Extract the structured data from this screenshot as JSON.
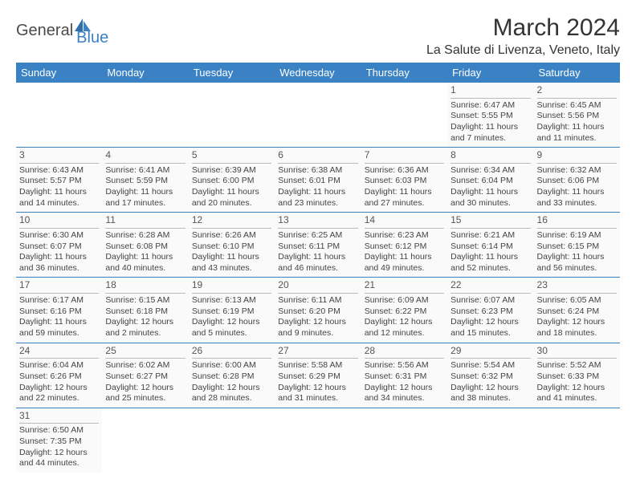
{
  "header": {
    "logo_dark": "General",
    "logo_blue": "Blue",
    "month_title": "March 2024",
    "location": "La Salute di Livenza, Veneto, Italy"
  },
  "colors": {
    "header_bg": "#3b82c4",
    "header_text": "#ffffff",
    "border": "#3b82c4",
    "cell_bg": "#fafafa",
    "logo_blue": "#3b7fc4",
    "logo_dark": "#4a4a4a"
  },
  "weekdays": [
    "Sunday",
    "Monday",
    "Tuesday",
    "Wednesday",
    "Thursday",
    "Friday",
    "Saturday"
  ],
  "weeks": [
    [
      null,
      null,
      null,
      null,
      null,
      {
        "day": "1",
        "sunrise": "Sunrise: 6:47 AM",
        "sunset": "Sunset: 5:55 PM",
        "daylight1": "Daylight: 11 hours",
        "daylight2": "and 7 minutes."
      },
      {
        "day": "2",
        "sunrise": "Sunrise: 6:45 AM",
        "sunset": "Sunset: 5:56 PM",
        "daylight1": "Daylight: 11 hours",
        "daylight2": "and 11 minutes."
      }
    ],
    [
      {
        "day": "3",
        "sunrise": "Sunrise: 6:43 AM",
        "sunset": "Sunset: 5:57 PM",
        "daylight1": "Daylight: 11 hours",
        "daylight2": "and 14 minutes."
      },
      {
        "day": "4",
        "sunrise": "Sunrise: 6:41 AM",
        "sunset": "Sunset: 5:59 PM",
        "daylight1": "Daylight: 11 hours",
        "daylight2": "and 17 minutes."
      },
      {
        "day": "5",
        "sunrise": "Sunrise: 6:39 AM",
        "sunset": "Sunset: 6:00 PM",
        "daylight1": "Daylight: 11 hours",
        "daylight2": "and 20 minutes."
      },
      {
        "day": "6",
        "sunrise": "Sunrise: 6:38 AM",
        "sunset": "Sunset: 6:01 PM",
        "daylight1": "Daylight: 11 hours",
        "daylight2": "and 23 minutes."
      },
      {
        "day": "7",
        "sunrise": "Sunrise: 6:36 AM",
        "sunset": "Sunset: 6:03 PM",
        "daylight1": "Daylight: 11 hours",
        "daylight2": "and 27 minutes."
      },
      {
        "day": "8",
        "sunrise": "Sunrise: 6:34 AM",
        "sunset": "Sunset: 6:04 PM",
        "daylight1": "Daylight: 11 hours",
        "daylight2": "and 30 minutes."
      },
      {
        "day": "9",
        "sunrise": "Sunrise: 6:32 AM",
        "sunset": "Sunset: 6:06 PM",
        "daylight1": "Daylight: 11 hours",
        "daylight2": "and 33 minutes."
      }
    ],
    [
      {
        "day": "10",
        "sunrise": "Sunrise: 6:30 AM",
        "sunset": "Sunset: 6:07 PM",
        "daylight1": "Daylight: 11 hours",
        "daylight2": "and 36 minutes."
      },
      {
        "day": "11",
        "sunrise": "Sunrise: 6:28 AM",
        "sunset": "Sunset: 6:08 PM",
        "daylight1": "Daylight: 11 hours",
        "daylight2": "and 40 minutes."
      },
      {
        "day": "12",
        "sunrise": "Sunrise: 6:26 AM",
        "sunset": "Sunset: 6:10 PM",
        "daylight1": "Daylight: 11 hours",
        "daylight2": "and 43 minutes."
      },
      {
        "day": "13",
        "sunrise": "Sunrise: 6:25 AM",
        "sunset": "Sunset: 6:11 PM",
        "daylight1": "Daylight: 11 hours",
        "daylight2": "and 46 minutes."
      },
      {
        "day": "14",
        "sunrise": "Sunrise: 6:23 AM",
        "sunset": "Sunset: 6:12 PM",
        "daylight1": "Daylight: 11 hours",
        "daylight2": "and 49 minutes."
      },
      {
        "day": "15",
        "sunrise": "Sunrise: 6:21 AM",
        "sunset": "Sunset: 6:14 PM",
        "daylight1": "Daylight: 11 hours",
        "daylight2": "and 52 minutes."
      },
      {
        "day": "16",
        "sunrise": "Sunrise: 6:19 AM",
        "sunset": "Sunset: 6:15 PM",
        "daylight1": "Daylight: 11 hours",
        "daylight2": "and 56 minutes."
      }
    ],
    [
      {
        "day": "17",
        "sunrise": "Sunrise: 6:17 AM",
        "sunset": "Sunset: 6:16 PM",
        "daylight1": "Daylight: 11 hours",
        "daylight2": "and 59 minutes."
      },
      {
        "day": "18",
        "sunrise": "Sunrise: 6:15 AM",
        "sunset": "Sunset: 6:18 PM",
        "daylight1": "Daylight: 12 hours",
        "daylight2": "and 2 minutes."
      },
      {
        "day": "19",
        "sunrise": "Sunrise: 6:13 AM",
        "sunset": "Sunset: 6:19 PM",
        "daylight1": "Daylight: 12 hours",
        "daylight2": "and 5 minutes."
      },
      {
        "day": "20",
        "sunrise": "Sunrise: 6:11 AM",
        "sunset": "Sunset: 6:20 PM",
        "daylight1": "Daylight: 12 hours",
        "daylight2": "and 9 minutes."
      },
      {
        "day": "21",
        "sunrise": "Sunrise: 6:09 AM",
        "sunset": "Sunset: 6:22 PM",
        "daylight1": "Daylight: 12 hours",
        "daylight2": "and 12 minutes."
      },
      {
        "day": "22",
        "sunrise": "Sunrise: 6:07 AM",
        "sunset": "Sunset: 6:23 PM",
        "daylight1": "Daylight: 12 hours",
        "daylight2": "and 15 minutes."
      },
      {
        "day": "23",
        "sunrise": "Sunrise: 6:05 AM",
        "sunset": "Sunset: 6:24 PM",
        "daylight1": "Daylight: 12 hours",
        "daylight2": "and 18 minutes."
      }
    ],
    [
      {
        "day": "24",
        "sunrise": "Sunrise: 6:04 AM",
        "sunset": "Sunset: 6:26 PM",
        "daylight1": "Daylight: 12 hours",
        "daylight2": "and 22 minutes."
      },
      {
        "day": "25",
        "sunrise": "Sunrise: 6:02 AM",
        "sunset": "Sunset: 6:27 PM",
        "daylight1": "Daylight: 12 hours",
        "daylight2": "and 25 minutes."
      },
      {
        "day": "26",
        "sunrise": "Sunrise: 6:00 AM",
        "sunset": "Sunset: 6:28 PM",
        "daylight1": "Daylight: 12 hours",
        "daylight2": "and 28 minutes."
      },
      {
        "day": "27",
        "sunrise": "Sunrise: 5:58 AM",
        "sunset": "Sunset: 6:29 PM",
        "daylight1": "Daylight: 12 hours",
        "daylight2": "and 31 minutes."
      },
      {
        "day": "28",
        "sunrise": "Sunrise: 5:56 AM",
        "sunset": "Sunset: 6:31 PM",
        "daylight1": "Daylight: 12 hours",
        "daylight2": "and 34 minutes."
      },
      {
        "day": "29",
        "sunrise": "Sunrise: 5:54 AM",
        "sunset": "Sunset: 6:32 PM",
        "daylight1": "Daylight: 12 hours",
        "daylight2": "and 38 minutes."
      },
      {
        "day": "30",
        "sunrise": "Sunrise: 5:52 AM",
        "sunset": "Sunset: 6:33 PM",
        "daylight1": "Daylight: 12 hours",
        "daylight2": "and 41 minutes."
      }
    ],
    [
      {
        "day": "31",
        "sunrise": "Sunrise: 6:50 AM",
        "sunset": "Sunset: 7:35 PM",
        "daylight1": "Daylight: 12 hours",
        "daylight2": "and 44 minutes."
      },
      null,
      null,
      null,
      null,
      null,
      null
    ]
  ]
}
